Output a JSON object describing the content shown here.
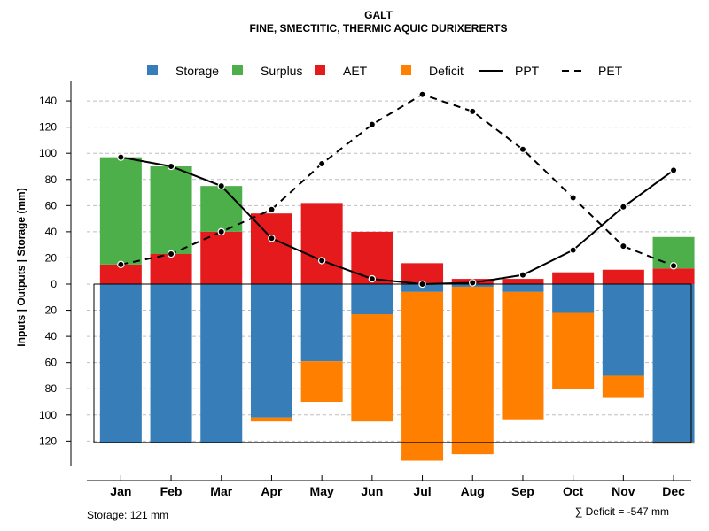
{
  "chart_data": {
    "type": "bar",
    "title": "GALT",
    "subtitle": "FINE, SMECTITIC, THERMIC AQUIC DURIXERERTS",
    "ylabel": "Inputs | Outputs | Storage    (mm)",
    "ylim": [
      -137,
      148
    ],
    "y_ticks": [
      140,
      120,
      100,
      80,
      60,
      40,
      20,
      0,
      -20,
      -40,
      -60,
      -80,
      -100,
      -120
    ],
    "y_tick_labels": [
      "140",
      "120",
      "100",
      "80",
      "60",
      "40",
      "20",
      "0",
      "20",
      "40",
      "60",
      "80",
      "100",
      "120"
    ],
    "categories": [
      "Jan",
      "Feb",
      "Mar",
      "Apr",
      "May",
      "Jun",
      "Jul",
      "Aug",
      "Sep",
      "Oct",
      "Nov",
      "Dec"
    ],
    "series": [
      {
        "name": "AET",
        "values": [
          15,
          23,
          40,
          54,
          62,
          40,
          16,
          4,
          4,
          9,
          11,
          12
        ]
      },
      {
        "name": "Surplus",
        "values": [
          82,
          67,
          35,
          0,
          0,
          0,
          0,
          0,
          0,
          0,
          0,
          24
        ]
      },
      {
        "name": "Storage",
        "values": [
          121,
          121,
          121,
          102,
          59,
          23,
          6,
          2,
          6,
          22,
          70,
          121
        ]
      },
      {
        "name": "Deficit",
        "values": [
          0,
          0,
          0,
          3,
          31,
          82,
          129,
          128,
          98,
          58,
          17,
          1
        ]
      },
      {
        "name": "PPT",
        "values": [
          97,
          90,
          75,
          35,
          18,
          4,
          0,
          1,
          7,
          26,
          59,
          87
        ]
      },
      {
        "name": "PET",
        "values": [
          15,
          23,
          40,
          57,
          92,
          122,
          145,
          132,
          103,
          66,
          29,
          14
        ]
      }
    ],
    "storage_capacity": 121,
    "legend": [
      {
        "label": "Storage",
        "kind": "box",
        "color": "#377EB8"
      },
      {
        "label": "Surplus",
        "kind": "box",
        "color": "#4DAF4A"
      },
      {
        "label": "AET",
        "kind": "box",
        "color": "#E41A1C"
      },
      {
        "label": "Deficit",
        "kind": "box",
        "color": "#FF7F00"
      },
      {
        "label": "PPT",
        "kind": "solid",
        "color": "#000000"
      },
      {
        "label": "PET",
        "kind": "dashed",
        "color": "#000000"
      }
    ],
    "legend_position": "top",
    "grid": true,
    "colors": {
      "storage": "#377EB8",
      "surplus": "#4DAF4A",
      "aet": "#E41A1C",
      "deficit": "#FF7F00",
      "grid": "#BEBEBE"
    }
  },
  "footer": {
    "storage_note": "Storage: 121 mm",
    "deficit_note": "∑ Deficit = -547 mm"
  }
}
